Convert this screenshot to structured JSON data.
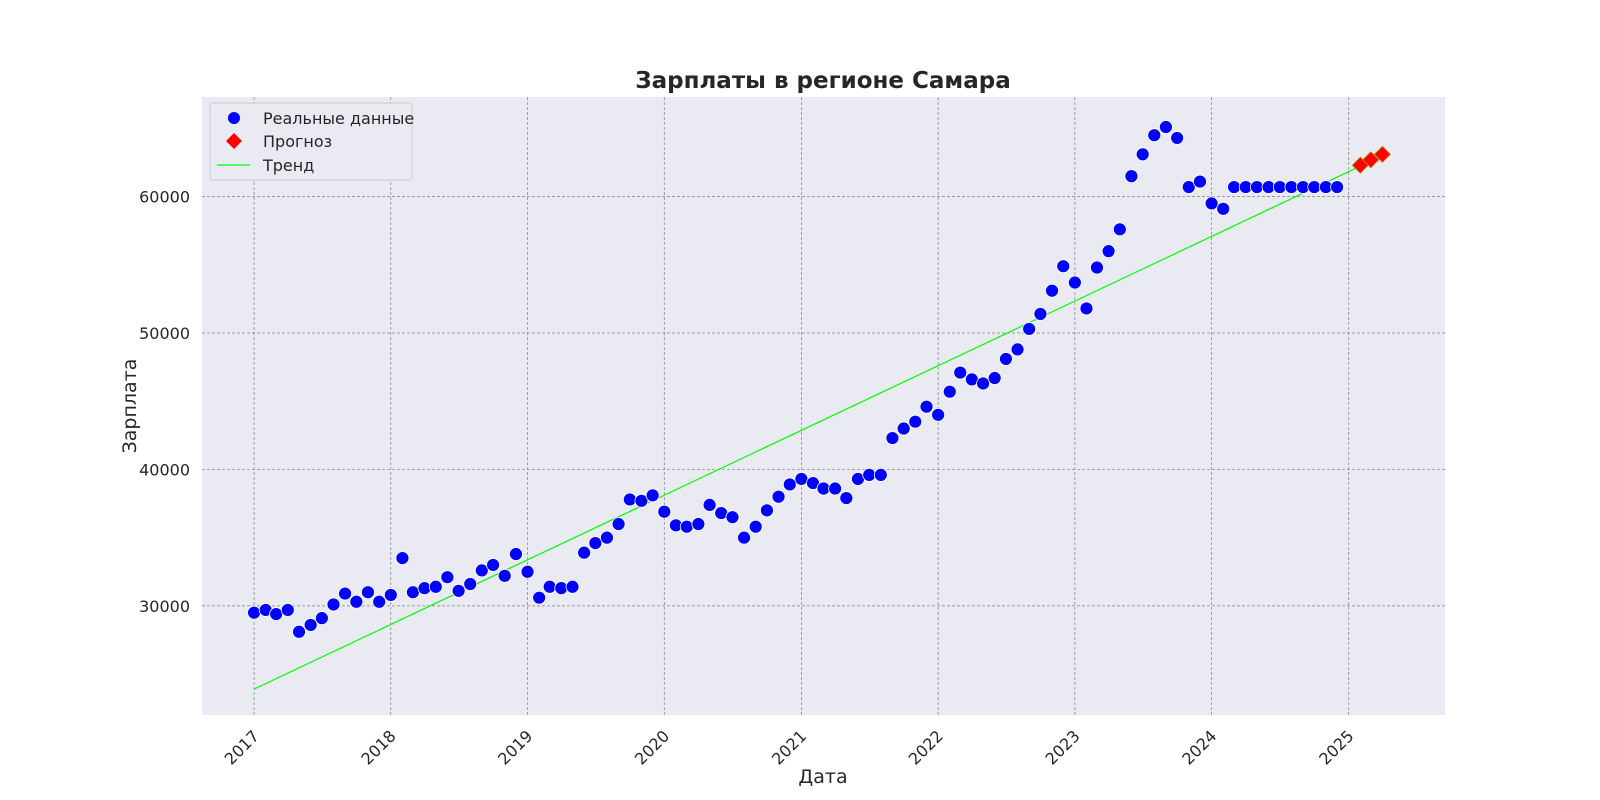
{
  "chart_data": {
    "type": "scatter",
    "title": "Зарплаты в регионе Самара",
    "xlabel": "Дата",
    "ylabel": "Зарплата",
    "xlim": [
      "2016-08-15",
      "2025-09-15"
    ],
    "ylim": [
      22000,
      67300
    ],
    "x_ticks": [
      "2017",
      "2018",
      "2019",
      "2020",
      "2021",
      "2022",
      "2023",
      "2024",
      "2025"
    ],
    "y_ticks": [
      30000,
      40000,
      50000,
      60000
    ],
    "grid": true,
    "legend_position": "top-left",
    "background_color": "#eaeaf2",
    "series": [
      {
        "name": "Реальные данные",
        "marker": "circle",
        "color": "#0000ff",
        "points": [
          {
            "x": "2017-01",
            "y": 29500
          },
          {
            "x": "2017-02",
            "y": 29700
          },
          {
            "x": "2017-03",
            "y": 29400
          },
          {
            "x": "2017-04",
            "y": 29700
          },
          {
            "x": "2017-05",
            "y": 28100
          },
          {
            "x": "2017-06",
            "y": 28600
          },
          {
            "x": "2017-07",
            "y": 29100
          },
          {
            "x": "2017-08",
            "y": 30100
          },
          {
            "x": "2017-09",
            "y": 30900
          },
          {
            "x": "2017-10",
            "y": 30300
          },
          {
            "x": "2017-11",
            "y": 31000
          },
          {
            "x": "2017-12",
            "y": 30300
          },
          {
            "x": "2018-01",
            "y": 30800
          },
          {
            "x": "2018-02",
            "y": 33500
          },
          {
            "x": "2018-03",
            "y": 31000
          },
          {
            "x": "2018-04",
            "y": 31300
          },
          {
            "x": "2018-05",
            "y": 31400
          },
          {
            "x": "2018-06",
            "y": 32100
          },
          {
            "x": "2018-07",
            "y": 31100
          },
          {
            "x": "2018-08",
            "y": 31600
          },
          {
            "x": "2018-09",
            "y": 32600
          },
          {
            "x": "2018-10",
            "y": 33000
          },
          {
            "x": "2018-11",
            "y": 32200
          },
          {
            "x": "2018-12",
            "y": 33800
          },
          {
            "x": "2019-01",
            "y": 32500
          },
          {
            "x": "2019-02",
            "y": 30600
          },
          {
            "x": "2019-03",
            "y": 31400
          },
          {
            "x": "2019-04",
            "y": 31300
          },
          {
            "x": "2019-05",
            "y": 31400
          },
          {
            "x": "2019-06",
            "y": 33900
          },
          {
            "x": "2019-07",
            "y": 34600
          },
          {
            "x": "2019-08",
            "y": 35000
          },
          {
            "x": "2019-09",
            "y": 36000
          },
          {
            "x": "2019-10",
            "y": 37800
          },
          {
            "x": "2019-11",
            "y": 37700
          },
          {
            "x": "2019-12",
            "y": 38100
          },
          {
            "x": "2020-01",
            "y": 36900
          },
          {
            "x": "2020-02",
            "y": 35900
          },
          {
            "x": "2020-03",
            "y": 35800
          },
          {
            "x": "2020-04",
            "y": 36000
          },
          {
            "x": "2020-05",
            "y": 37400
          },
          {
            "x": "2020-06",
            "y": 36800
          },
          {
            "x": "2020-07",
            "y": 36500
          },
          {
            "x": "2020-08",
            "y": 35000
          },
          {
            "x": "2020-09",
            "y": 35800
          },
          {
            "x": "2020-10",
            "y": 37000
          },
          {
            "x": "2020-11",
            "y": 38000
          },
          {
            "x": "2020-12",
            "y": 38900
          },
          {
            "x": "2021-01",
            "y": 39300
          },
          {
            "x": "2021-02",
            "y": 39000
          },
          {
            "x": "2021-03",
            "y": 38600
          },
          {
            "x": "2021-04",
            "y": 38600
          },
          {
            "x": "2021-05",
            "y": 37900
          },
          {
            "x": "2021-06",
            "y": 39300
          },
          {
            "x": "2021-07",
            "y": 39600
          },
          {
            "x": "2021-08",
            "y": 39600
          },
          {
            "x": "2021-09",
            "y": 42300
          },
          {
            "x": "2021-10",
            "y": 43000
          },
          {
            "x": "2021-11",
            "y": 43500
          },
          {
            "x": "2021-12",
            "y": 44600
          },
          {
            "x": "2022-01",
            "y": 44000
          },
          {
            "x": "2022-02",
            "y": 45700
          },
          {
            "x": "2022-03",
            "y": 47100
          },
          {
            "x": "2022-04",
            "y": 46600
          },
          {
            "x": "2022-05",
            "y": 46300
          },
          {
            "x": "2022-06",
            "y": 46700
          },
          {
            "x": "2022-07",
            "y": 48100
          },
          {
            "x": "2022-08",
            "y": 48800
          },
          {
            "x": "2022-09",
            "y": 50300
          },
          {
            "x": "2022-10",
            "y": 51400
          },
          {
            "x": "2022-11",
            "y": 53100
          },
          {
            "x": "2022-12",
            "y": 54900
          },
          {
            "x": "2023-01",
            "y": 53700
          },
          {
            "x": "2023-02",
            "y": 51800
          },
          {
            "x": "2023-03",
            "y": 54800
          },
          {
            "x": "2023-04",
            "y": 56000
          },
          {
            "x": "2023-05",
            "y": 57600
          },
          {
            "x": "2023-06",
            "y": 61500
          },
          {
            "x": "2023-07",
            "y": 63100
          },
          {
            "x": "2023-08",
            "y": 64500
          },
          {
            "x": "2023-09",
            "y": 65100
          },
          {
            "x": "2023-10",
            "y": 64300
          },
          {
            "x": "2023-11",
            "y": 60700
          },
          {
            "x": "2023-12",
            "y": 61100
          },
          {
            "x": "2024-01",
            "y": 59500
          },
          {
            "x": "2024-02",
            "y": 59100
          },
          {
            "x": "2024-03",
            "y": 60700
          },
          {
            "x": "2024-04",
            "y": 60700
          },
          {
            "x": "2024-05",
            "y": 60700
          },
          {
            "x": "2024-06",
            "y": 60700
          },
          {
            "x": "2024-07",
            "y": 60700
          },
          {
            "x": "2024-08",
            "y": 60700
          },
          {
            "x": "2024-09",
            "y": 60700
          },
          {
            "x": "2024-10",
            "y": 60700
          },
          {
            "x": "2024-11",
            "y": 60700
          },
          {
            "x": "2024-12",
            "y": 60700
          }
        ]
      },
      {
        "name": "Прогноз",
        "marker": "diamond",
        "color": "#ff0000",
        "points": [
          {
            "x": "2025-02",
            "y": 62300
          },
          {
            "x": "2025-03",
            "y": 62700
          },
          {
            "x": "2025-04",
            "y": 63100
          }
        ]
      },
      {
        "name": "Тренд",
        "marker": "line",
        "color": "#00ff00",
        "points": [
          {
            "x": "2017-01",
            "y": 23900
          },
          {
            "x": "2025-04",
            "y": 63000
          }
        ]
      }
    ]
  }
}
